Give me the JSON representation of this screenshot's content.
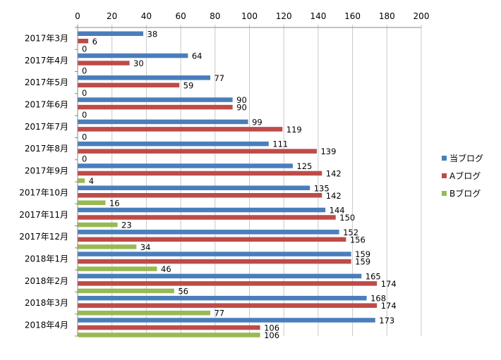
{
  "chart_data": {
    "type": "bar",
    "orientation": "horizontal",
    "categories": [
      "2017年3月",
      "2017年4月",
      "2017年5月",
      "2017年6月",
      "2017年7月",
      "2017年8月",
      "2017年9月",
      "2017年10月",
      "2017年11月",
      "2017年12月",
      "2018年1月",
      "2018年2月",
      "2018年3月",
      "2018年4月"
    ],
    "series": [
      {
        "name": "当ブログ",
        "color": "#4a7ebb",
        "values": [
          38,
          64,
          77,
          90,
          99,
          111,
          125,
          135,
          144,
          152,
          159,
          165,
          168,
          173
        ],
        "labels": [
          "38",
          "64",
          "77",
          "90",
          "99",
          "111",
          "125",
          "135",
          "144",
          "152",
          "159",
          "165",
          "168",
          "173"
        ]
      },
      {
        "name": "Aブログ",
        "color": "#be4b48",
        "values": [
          6,
          30,
          59,
          90,
          119,
          139,
          142,
          142,
          150,
          156,
          159,
          174,
          174,
          106
        ],
        "labels": [
          "6",
          "30",
          "59",
          "90",
          "119",
          "139",
          "142",
          "142",
          "150",
          "156",
          "159",
          "174",
          "174",
          "106"
        ]
      },
      {
        "name": "Bブログ",
        "color": "#98b954",
        "values": [
          0,
          0,
          0,
          0,
          0,
          0,
          4,
          16,
          23,
          34,
          46,
          56,
          77,
          106
        ],
        "labels": [
          "0",
          "0",
          "0",
          "0",
          "0",
          "0",
          "4",
          "16",
          "23",
          "34",
          "46",
          "56",
          "77",
          "106"
        ]
      }
    ],
    "xlim": [
      0,
      200
    ],
    "x_ticks": [
      "0",
      "20",
      "40",
      "60",
      "80",
      "100",
      "120",
      "140",
      "160",
      "180",
      "200"
    ],
    "x_axis_position": "top",
    "grid": "vertical",
    "legend": "right",
    "title": "",
    "xlabel": "",
    "ylabel": ""
  }
}
